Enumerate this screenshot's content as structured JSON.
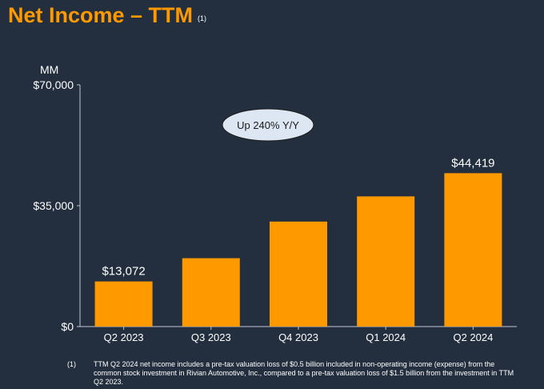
{
  "title": "Net Income – TTM",
  "title_note": "(1)",
  "unit_label": "MM",
  "annotation": "Up 240% Y/Y",
  "chart_data": {
    "type": "bar",
    "categories": [
      "Q2 2023",
      "Q3 2023",
      "Q4 2023",
      "Q1 2024",
      "Q2 2024"
    ],
    "values": [
      13072,
      19800,
      30400,
      37700,
      44419
    ],
    "data_labels": [
      "$13,072",
      "",
      "",
      "",
      "$44,419"
    ],
    "yticks": [
      0,
      35000,
      70000
    ],
    "ytick_labels": [
      "$0",
      "$35,000",
      "$70,000"
    ],
    "ylim": [
      0,
      70000
    ],
    "ylabel": "MM",
    "bar_color": "#FF9900",
    "grid": false
  },
  "footnote": {
    "number": "(1)",
    "text": "TTM Q2 2024 net income includes a pre-tax valuation loss of $0.5 billion included in non-operating income (expense) from the common stock investment in Rivian Automotive, Inc., compared to a pre-tax valuation loss of $1.5 billion from the investment in TTM Q2 2023."
  }
}
